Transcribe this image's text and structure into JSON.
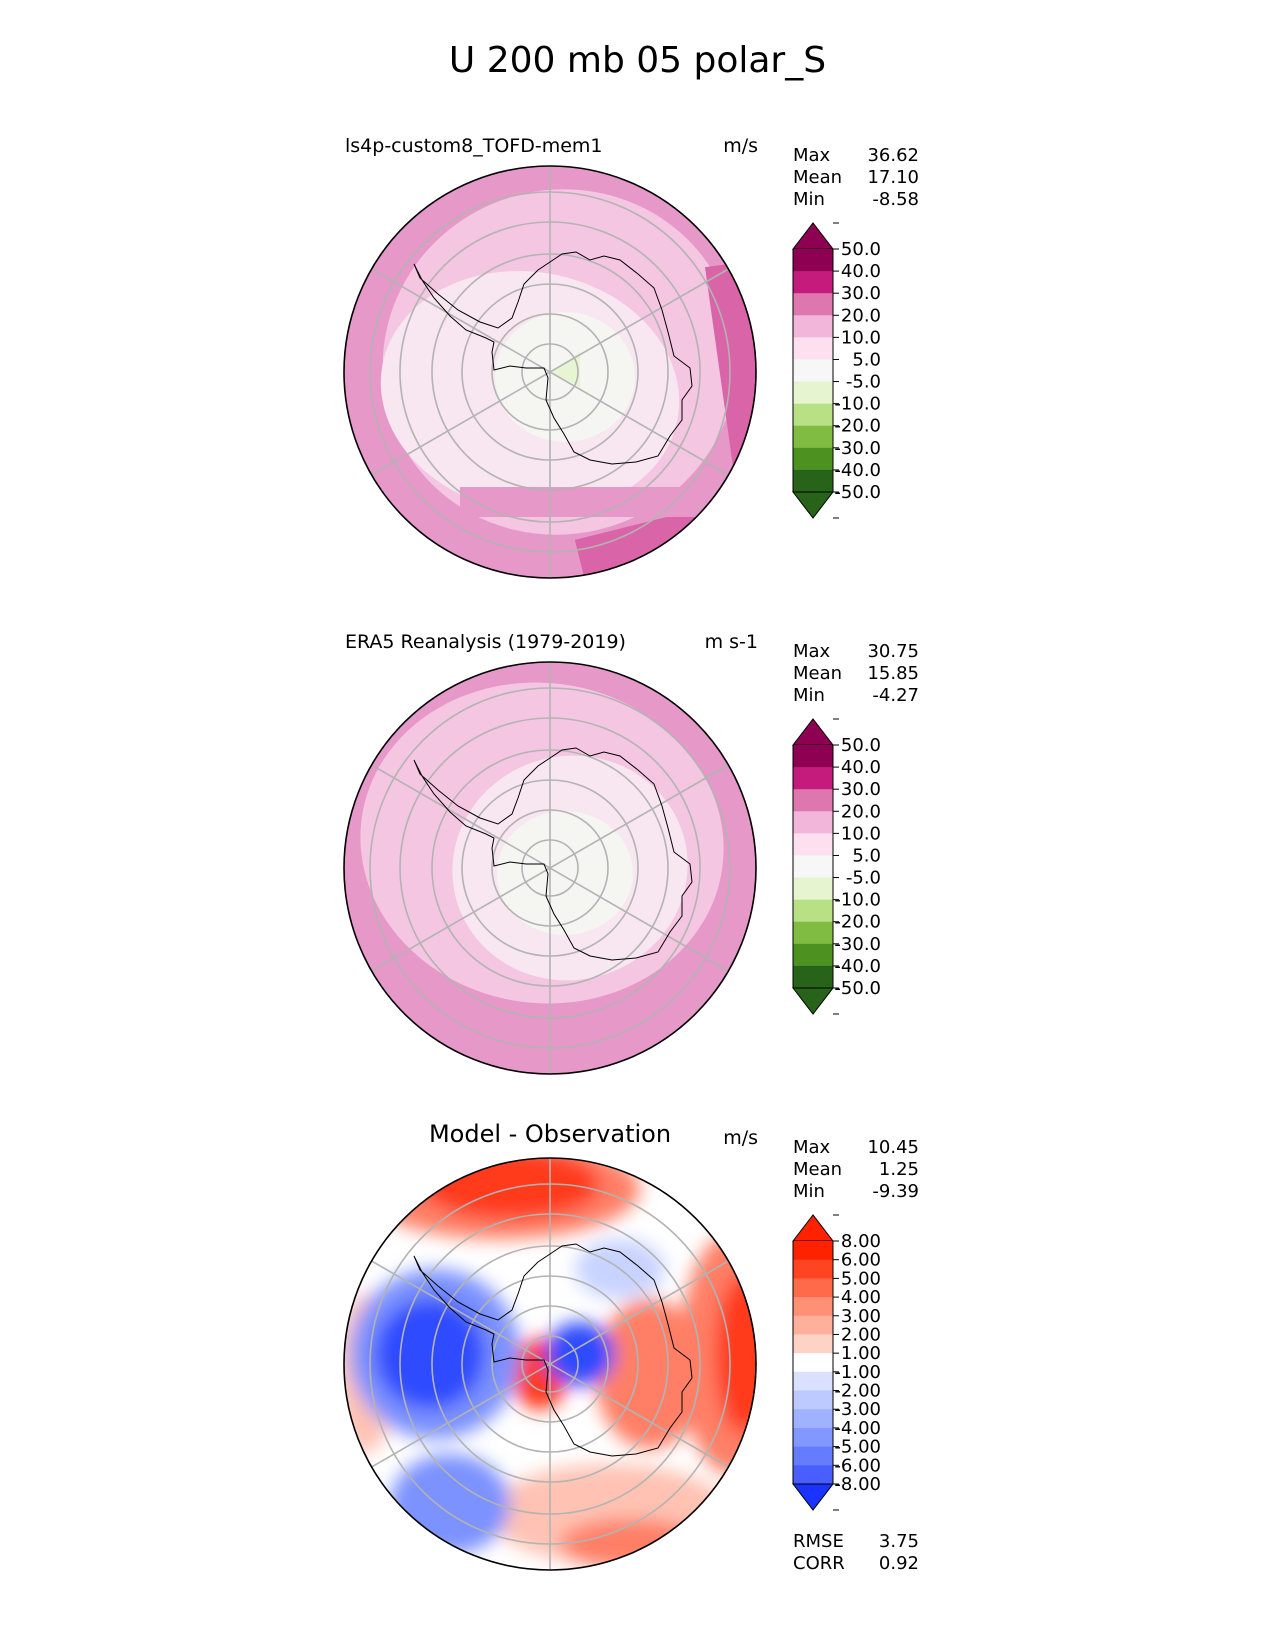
{
  "figure_title": "U 200 mb 05 polar_S",
  "chart_data": [
    {
      "type": "heatmap",
      "projection": "south-polar-stereographic",
      "title": "ls4p-custom8_TOFD-mem1",
      "units": "m/s",
      "stats": [
        {
          "name": "Max",
          "value": "36.62"
        },
        {
          "name": "Mean",
          "value": "17.10"
        },
        {
          "name": "Min",
          "value": "-8.58"
        }
      ],
      "colorbar": {
        "levels": [
          "50.0",
          "40.0",
          "30.0",
          "20.0",
          "10.0",
          "5.0",
          "-5.0",
          "-10.0",
          "-20.0",
          "-30.0",
          "-40.0",
          "-50.0"
        ],
        "colors": [
          "#8e0152",
          "#c51b7d",
          "#de77ae",
          "#f1b6da",
          "#fde0ef",
          "#f7f7f7",
          "#e6f5d0",
          "#b8e186",
          "#7fbc41",
          "#4d9221",
          "#276419"
        ],
        "extend": "both",
        "max_color": "#8e0152",
        "min_color": "#276419"
      },
      "field_colors": {
        "outer": "#e698c8",
        "middle": "#f4c6e1",
        "inner": "#f8e6f1",
        "pole": "#f5f5f2",
        "wedge": "#e7f5d3",
        "band": "#d964a8"
      }
    },
    {
      "type": "heatmap",
      "projection": "south-polar-stereographic",
      "title": "ERA5 Reanalysis (1979-2019)",
      "units": "m s-1",
      "stats": [
        {
          "name": "Max",
          "value": "30.75"
        },
        {
          "name": "Mean",
          "value": "15.85"
        },
        {
          "name": "Min",
          "value": "-4.27"
        }
      ],
      "colorbar": {
        "levels": [
          "50.0",
          "40.0",
          "30.0",
          "20.0",
          "10.0",
          "5.0",
          "-5.0",
          "-10.0",
          "-20.0",
          "-30.0",
          "-40.0",
          "-50.0"
        ],
        "colors": [
          "#8e0152",
          "#c51b7d",
          "#de77ae",
          "#f1b6da",
          "#fde0ef",
          "#f7f7f7",
          "#e6f5d0",
          "#b8e186",
          "#7fbc41",
          "#4d9221",
          "#276419"
        ],
        "extend": "both",
        "max_color": "#8e0152",
        "min_color": "#276419"
      },
      "field_colors": {
        "outer": "#e698c8",
        "middle": "#f4c6e1",
        "inner": "#f8e6f1",
        "pole": "#f5f5f2"
      }
    },
    {
      "type": "heatmap",
      "projection": "south-polar-stereographic",
      "title": "Model - Observation",
      "units": "m/s",
      "stats": [
        {
          "name": "Max",
          "value": "10.45"
        },
        {
          "name": "Mean",
          "value": "1.25"
        },
        {
          "name": "Min",
          "value": "-9.39"
        }
      ],
      "extra_stats": [
        {
          "name": "RMSE",
          "value": "3.75"
        },
        {
          "name": "CORR",
          "value": "0.92"
        }
      ],
      "colorbar": {
        "levels": [
          "8.00",
          "6.00",
          "5.00",
          "4.00",
          "3.00",
          "2.00",
          "1.00",
          "-1.00",
          "-2.00",
          "-3.00",
          "-4.00",
          "-5.00",
          "-6.00",
          "-8.00"
        ],
        "colors": [
          "#ff2200",
          "#ff4422",
          "#ff6a4a",
          "#ff8f75",
          "#ffb09c",
          "#ffd2c6",
          "#ffffff",
          "#d9e1ff",
          "#bccaff",
          "#a0b2ff",
          "#8298ff",
          "#667cff",
          "#4a5eff"
        ],
        "extend": "both",
        "max_color": "#ff2200",
        "min_color": "#1a33ff"
      },
      "field_colors": {
        "red_strong": "#ff3a1a",
        "red_mid": "#ff7f66",
        "red_light": "#ffc2b3",
        "blue_strong": "#2f4bff",
        "blue_mid": "#7b92ff",
        "blue_light": "#c8d3ff"
      }
    }
  ]
}
